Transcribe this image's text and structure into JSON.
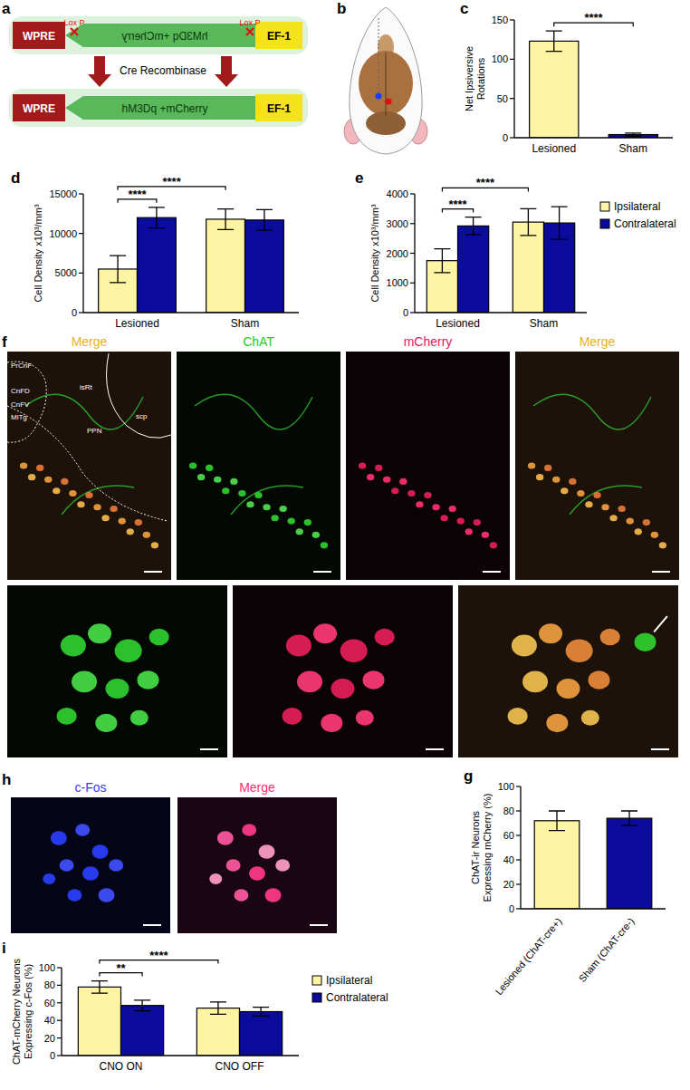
{
  "figure": {
    "panel_labels": [
      "a",
      "b",
      "c",
      "d",
      "e",
      "f",
      "g",
      "h",
      "i"
    ],
    "construct": {
      "before": [
        "WPRE",
        "hM3Dq +mCherry",
        "EF-1"
      ],
      "after": [
        "WPRE",
        "hM3Dq +mCherry",
        "EF-1"
      ],
      "loxp": [
        "Lox P",
        "Lox P"
      ],
      "enzyme": "Cre Recombinase"
    },
    "panel_f": {
      "titles": [
        "Merge",
        "ChAT",
        "mCherry",
        "Merge"
      ],
      "regions": [
        "PrCnF",
        "CnFD",
        "CnFV",
        "MiTg",
        "isRt",
        "PPN",
        "scp"
      ]
    },
    "panel_h": {
      "titles": [
        "c-Fos",
        "Merge"
      ]
    }
  },
  "chart_data": [
    {
      "type": "bar",
      "categories": [
        "Lesioned",
        "Sham"
      ],
      "values": [
        123,
        4
      ],
      "errors": [
        13,
        2
      ],
      "colors": [
        "#fff4a3",
        "#0b0b9e"
      ],
      "y_label": "Net Ipsiversive Rotations",
      "ylim": [
        0,
        150
      ],
      "yticks": [
        0,
        50,
        100,
        150
      ],
      "annotations": [
        {
          "text": "****",
          "from": 0,
          "to": 1
        }
      ]
    },
    {
      "type": "bar",
      "categories": [
        "Lesioned",
        "Sham"
      ],
      "series": [
        {
          "color": "#fff4a3",
          "values": [
            5500,
            11800
          ],
          "errors": [
            1700,
            1300
          ]
        },
        {
          "color": "#0b0b9e",
          "values": [
            12000,
            11700
          ],
          "errors": [
            1300,
            1300
          ]
        }
      ],
      "y_label": "Cell Density x10³/mm³",
      "ylim": [
        0,
        15000
      ],
      "yticks": [
        0,
        5000,
        10000,
        15000
      ],
      "annotations": [
        {
          "text": "****",
          "from": [
            0,
            0
          ],
          "to": [
            0,
            1
          ]
        },
        {
          "text": "****",
          "from": [
            0,
            0
          ],
          "to": [
            1,
            0
          ]
        }
      ]
    },
    {
      "type": "bar",
      "categories": [
        "Lesioned",
        "Sham"
      ],
      "series": [
        {
          "name": "Ipsilateral",
          "color": "#fff4a3",
          "values": [
            1750,
            3050
          ],
          "errors": [
            400,
            450
          ]
        },
        {
          "name": "Contralateral",
          "color": "#0b0b9e",
          "values": [
            2920,
            3020
          ],
          "errors": [
            300,
            550
          ]
        }
      ],
      "y_label": "Cell Density x10³/mm³",
      "ylim": [
        0,
        4000
      ],
      "yticks": [
        0,
        1000,
        2000,
        3000,
        4000
      ],
      "legend": "right",
      "annotations": [
        {
          "text": "****",
          "from": [
            0,
            0
          ],
          "to": [
            0,
            1
          ]
        },
        {
          "text": "****",
          "from": [
            0,
            0
          ],
          "to": [
            1,
            0
          ]
        }
      ]
    },
    {
      "type": "bar",
      "categories": [
        "Lesioned (ChAT-cre+)",
        "Sham (ChAT-cre-)"
      ],
      "values": [
        72,
        74
      ],
      "errors": [
        8,
        6
      ],
      "colors": [
        "#fff4a3",
        "#0b0b9e"
      ],
      "y_label": "ChAT-ir Neurons Expressing mCherry (%)",
      "ylim": [
        0,
        100
      ],
      "yticks": [
        0,
        20,
        40,
        60,
        80,
        100
      ]
    },
    {
      "type": "bar",
      "categories": [
        "CNO ON",
        "CNO OFF"
      ],
      "series": [
        {
          "name": "Ipsilateral",
          "color": "#fff4a3",
          "values": [
            78,
            54
          ],
          "errors": [
            7,
            7
          ]
        },
        {
          "name": "Contralateral",
          "color": "#0b0b9e",
          "values": [
            57,
            50
          ],
          "errors": [
            6,
            5
          ]
        }
      ],
      "y_label": "ChAT-mCherry Neurons Expressing c-Fos (%)",
      "ylim": [
        0,
        100
      ],
      "yticks": [
        0,
        20,
        40,
        60,
        80,
        100
      ],
      "legend": "right",
      "annotations": [
        {
          "text": "**",
          "from": [
            0,
            0
          ],
          "to": [
            0,
            1
          ]
        },
        {
          "text": "****",
          "from": [
            0,
            0
          ],
          "to": [
            1,
            0
          ]
        }
      ]
    }
  ]
}
